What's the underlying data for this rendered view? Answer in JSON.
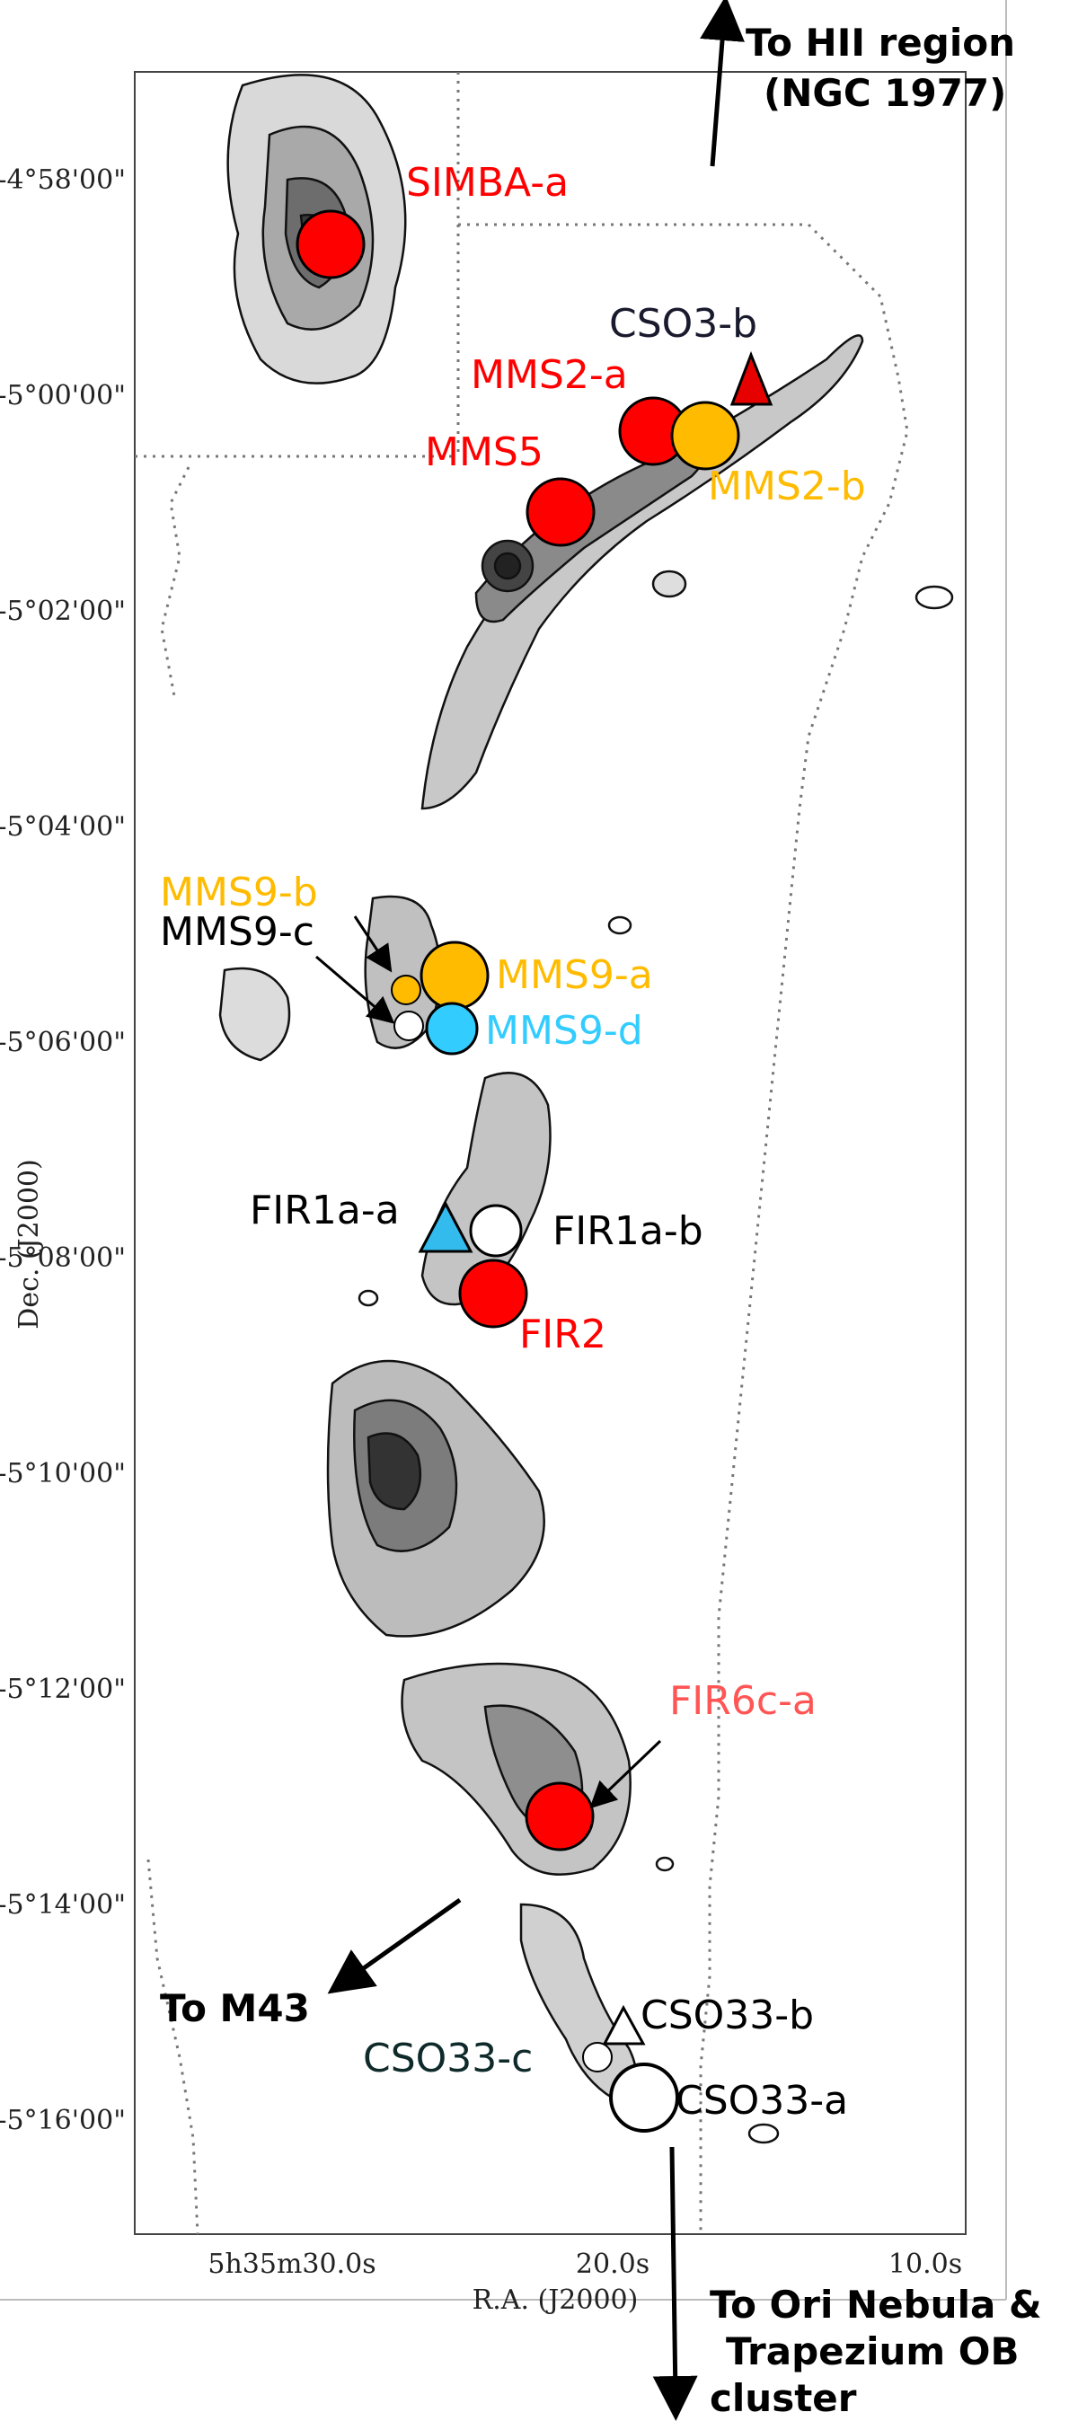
{
  "figure": {
    "axes": {
      "xlabel": "R.A. (J2000)",
      "ylabel": "Dec. (J2000)",
      "xticks": [
        "5h35m30.0s",
        "20.0s",
        "10.0s"
      ],
      "yticks": [
        "-4°58'00\"",
        "-5°00'00\"",
        "-5°02'00\"",
        "-5°04'00\"",
        "-5°06'00\"",
        "-5°08'00\"",
        "-5°10'00\"",
        "-5°12'00\"",
        "-5°14'00\"",
        "-5°16'00\""
      ]
    },
    "sources": [
      {
        "name": "SIMBA-a",
        "color": "#ff0000",
        "marker": "circle"
      },
      {
        "name": "CSO3-b",
        "color": "#ff0000",
        "marker": "triangle",
        "label_color": "#1a1a2e"
      },
      {
        "name": "MMS2-a",
        "color": "#ff0000",
        "marker": "circle"
      },
      {
        "name": "MMS2-b",
        "color": "#ffbb00",
        "marker": "circle"
      },
      {
        "name": "MMS5",
        "color": "#ff0000",
        "marker": "circle"
      },
      {
        "name": "MMS9-b",
        "color": "#ffbb00",
        "marker": "circle"
      },
      {
        "name": "MMS9-c",
        "color": "#ffffff",
        "marker": "circle",
        "label_color": "#000000"
      },
      {
        "name": "MMS9-a",
        "color": "#ffbb00",
        "marker": "circle"
      },
      {
        "name": "MMS9-d",
        "color": "#33ccff",
        "marker": "circle"
      },
      {
        "name": "FIR1a-a",
        "color": "#33bbee",
        "marker": "triangle",
        "label_color": "#000000"
      },
      {
        "name": "FIR1a-b",
        "color": "#ffffff",
        "marker": "circle",
        "label_color": "#000000"
      },
      {
        "name": "FIR2",
        "color": "#ff0000",
        "marker": "circle"
      },
      {
        "name": "FIR6c-a",
        "color": "#ff0000",
        "marker": "circle",
        "label_color": "#ff5555"
      },
      {
        "name": "CSO33-b",
        "color": "#ffffff",
        "marker": "triangle",
        "label_color": "#000000"
      },
      {
        "name": "CSO33-c",
        "color": "#ffffff",
        "marker": "circle",
        "label_color": "#0f2a2a"
      },
      {
        "name": "CSO33-a",
        "color": "#ffffff",
        "marker": "circle",
        "label_color": "#000000"
      }
    ],
    "directions": {
      "hii_line1": "To HII region",
      "hii_line2": "(NGC 1977)",
      "m43": "To M43",
      "ori_line1": "To Ori Nebula &",
      "ori_line2": "Trapezium OB",
      "ori_line3": "cluster"
    }
  }
}
